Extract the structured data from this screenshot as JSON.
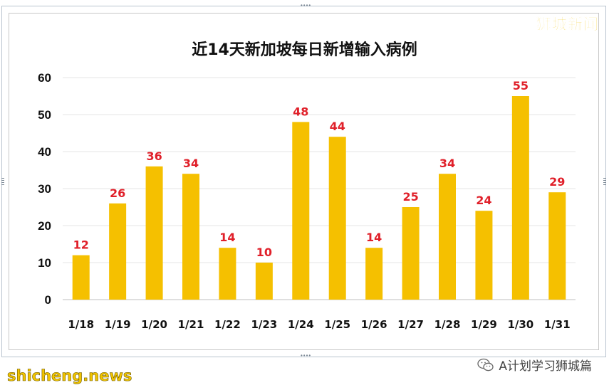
{
  "brand": "狮城新闻",
  "footer": {
    "watermark": "shicheng.news",
    "account": "A计划学习狮城篇",
    "account_icon": "wechat-icon"
  },
  "colors": {
    "bar": "#f5c000",
    "label": "#e0202a",
    "grid": "#e6e6e6",
    "axis": "#bfbfbf"
  },
  "chart_data": {
    "type": "bar",
    "title": "近14天新加坡每日新增输入病例",
    "xlabel": "",
    "ylabel": "",
    "categories": [
      "1/18",
      "1/19",
      "1/20",
      "1/21",
      "1/22",
      "1/23",
      "1/24",
      "1/25",
      "1/26",
      "1/27",
      "1/28",
      "1/29",
      "1/30",
      "1/31"
    ],
    "values": [
      12,
      26,
      36,
      34,
      14,
      10,
      48,
      44,
      14,
      25,
      34,
      24,
      55,
      29
    ],
    "ylim": [
      0,
      60
    ],
    "yticks": [
      "0",
      "10",
      "20",
      "30",
      "40",
      "50",
      "60"
    ],
    "grid": true,
    "data_labels": true
  }
}
